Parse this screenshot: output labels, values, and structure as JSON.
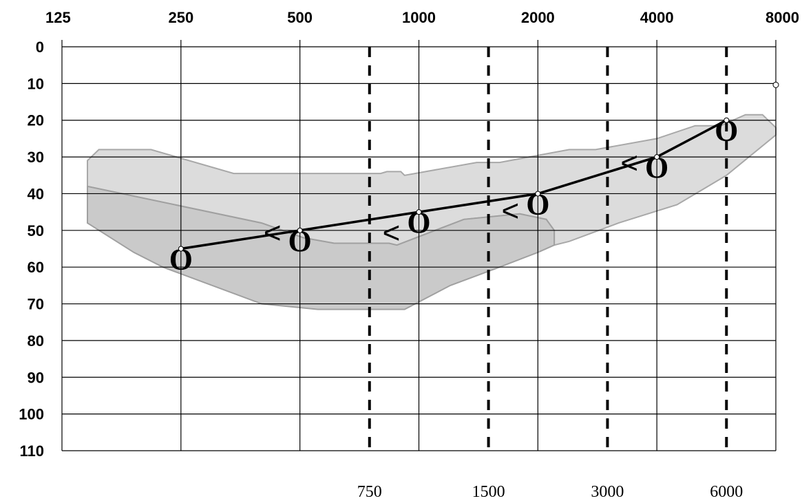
{
  "chart_data": {
    "type": "line",
    "chart_kind": "audiogram",
    "x_scale": "log",
    "y_inverted": true,
    "x_ticks_top": [
      "125",
      "250",
      "500",
      "1000",
      "2000",
      "4000",
      "8000"
    ],
    "x_ticks_bottom": [
      "750",
      "1500",
      "3000",
      "6000"
    ],
    "y_ticks": [
      "0",
      "10",
      "20",
      "30",
      "40",
      "50",
      "60",
      "70",
      "80",
      "90",
      "100",
      "110"
    ],
    "xlim": [
      125,
      8000
    ],
    "ylim": [
      0,
      110
    ],
    "grid": true,
    "dashed_gridlines_at": [
      750,
      1500,
      3000,
      6000
    ],
    "series": [
      {
        "x": [
          250,
          500,
          1000,
          2000,
          4000,
          6000
        ],
        "y": [
          55,
          50,
          45,
          40,
          30,
          20
        ],
        "marker": "O",
        "color": "#000000"
      }
    ],
    "secondary_symbols": [
      {
        "symbol": "<",
        "x": 500,
        "y": 50
      },
      {
        "symbol": "<",
        "x": 1000,
        "y": 50
      },
      {
        "symbol": "<",
        "x": 2000,
        "y": 44
      },
      {
        "symbol": "<",
        "x": 4000,
        "y": 31
      }
    ],
    "shaded_regions": [
      {
        "fill": "#dcdcdc",
        "stroke": "#a8a8a8",
        "points": [
          [
            145,
            31
          ],
          [
            155,
            28
          ],
          [
            210,
            28
          ],
          [
            340,
            34.5
          ],
          [
            800,
            34.5
          ],
          [
            830,
            34
          ],
          [
            900,
            34
          ],
          [
            920,
            35
          ],
          [
            1400,
            31.5
          ],
          [
            1600,
            31.5
          ],
          [
            2400,
            28
          ],
          [
            2800,
            28
          ],
          [
            4000,
            25
          ],
          [
            5000,
            21.5
          ],
          [
            5800,
            21.5
          ],
          [
            6700,
            18.5
          ],
          [
            7400,
            18.5
          ],
          [
            8000,
            22
          ],
          [
            8000,
            24
          ],
          [
            6000,
            35
          ],
          [
            4500,
            43
          ],
          [
            3200,
            48
          ],
          [
            2400,
            53
          ],
          [
            2200,
            54
          ],
          [
            2200,
            50
          ],
          [
            2100,
            47
          ],
          [
            1800,
            45.5
          ],
          [
            1300,
            47
          ],
          [
            880,
            54
          ],
          [
            840,
            53.5
          ],
          [
            610,
            53.5
          ],
          [
            510,
            52
          ],
          [
            400,
            48
          ],
          [
            145,
            38
          ]
        ]
      },
      {
        "fill": "#cacaca",
        "stroke": "#a0a0a0",
        "points": [
          [
            145,
            38
          ],
          [
            400,
            48
          ],
          [
            510,
            52
          ],
          [
            610,
            53.5
          ],
          [
            840,
            53.5
          ],
          [
            880,
            54
          ],
          [
            1300,
            47
          ],
          [
            1800,
            45.5
          ],
          [
            2100,
            47
          ],
          [
            2200,
            50
          ],
          [
            2200,
            54
          ],
          [
            2000,
            56
          ],
          [
            1600,
            60
          ],
          [
            1200,
            65
          ],
          [
            920,
            71.5
          ],
          [
            555,
            71.5
          ],
          [
            400,
            70
          ],
          [
            225,
            60
          ],
          [
            190,
            56
          ],
          [
            145,
            48
          ]
        ]
      }
    ],
    "colors": {
      "background": "#ffffff",
      "grid": "#000000",
      "line": "#000000"
    }
  }
}
